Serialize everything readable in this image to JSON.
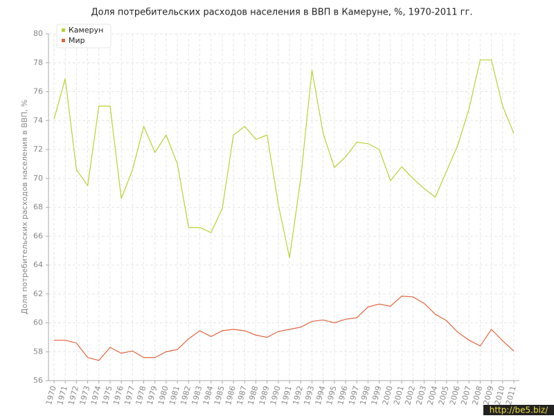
{
  "chart_data": {
    "type": "line",
    "title": "Доля потребительских расходов населения в ВВП в Камеруне, %, 1970-2011 гг.",
    "y_label": "Доля потребительских расходов населения в ВВП, %",
    "watermark": "http://be5.biz/",
    "x": [
      1970,
      1971,
      1972,
      1973,
      1974,
      1975,
      1976,
      1977,
      1978,
      1979,
      1980,
      1981,
      1982,
      1983,
      1984,
      1985,
      1986,
      1987,
      1988,
      1989,
      1990,
      1991,
      1992,
      1993,
      1994,
      1995,
      1996,
      1997,
      1998,
      1999,
      2000,
      2001,
      2002,
      2003,
      2004,
      2005,
      2006,
      2007,
      2008,
      2009,
      2010,
      2011
    ],
    "xlim": [
      1970,
      2011
    ],
    "ylim": [
      56,
      80
    ],
    "yticks": [
      56,
      58,
      60,
      62,
      64,
      66,
      68,
      70,
      72,
      74,
      76,
      78,
      80
    ],
    "grid": true,
    "legend": "top-left",
    "series": [
      {
        "name": "Камерун",
        "color": "#b5d334",
        "values": [
          74.1,
          76.9,
          70.6,
          69.5,
          75.0,
          75.0,
          68.6,
          70.6,
          73.6,
          71.8,
          73.0,
          71.0,
          66.6,
          66.6,
          66.25,
          67.9,
          73.0,
          73.6,
          72.7,
          73.0,
          68.2,
          64.5,
          70.0,
          77.5,
          73.1,
          70.75,
          71.5,
          72.5,
          72.4,
          72.0,
          69.85,
          70.8,
          70.0,
          69.3,
          68.7,
          70.5,
          72.3,
          74.8,
          78.2,
          78.2,
          75.0,
          73.1
        ]
      },
      {
        "name": "Мир",
        "color": "#e0643c",
        "values": [
          58.8,
          58.8,
          58.6,
          57.6,
          57.4,
          58.3,
          57.9,
          58.05,
          57.6,
          57.6,
          58.0,
          58.15,
          58.9,
          59.45,
          59.05,
          59.45,
          59.55,
          59.45,
          59.15,
          59.0,
          59.4,
          59.55,
          59.7,
          60.1,
          60.2,
          60.0,
          60.25,
          60.35,
          61.1,
          61.3,
          61.15,
          61.85,
          61.8,
          61.35,
          60.6,
          60.15,
          59.35,
          58.8,
          58.4,
          59.55,
          58.75,
          58.05
        ]
      }
    ]
  }
}
